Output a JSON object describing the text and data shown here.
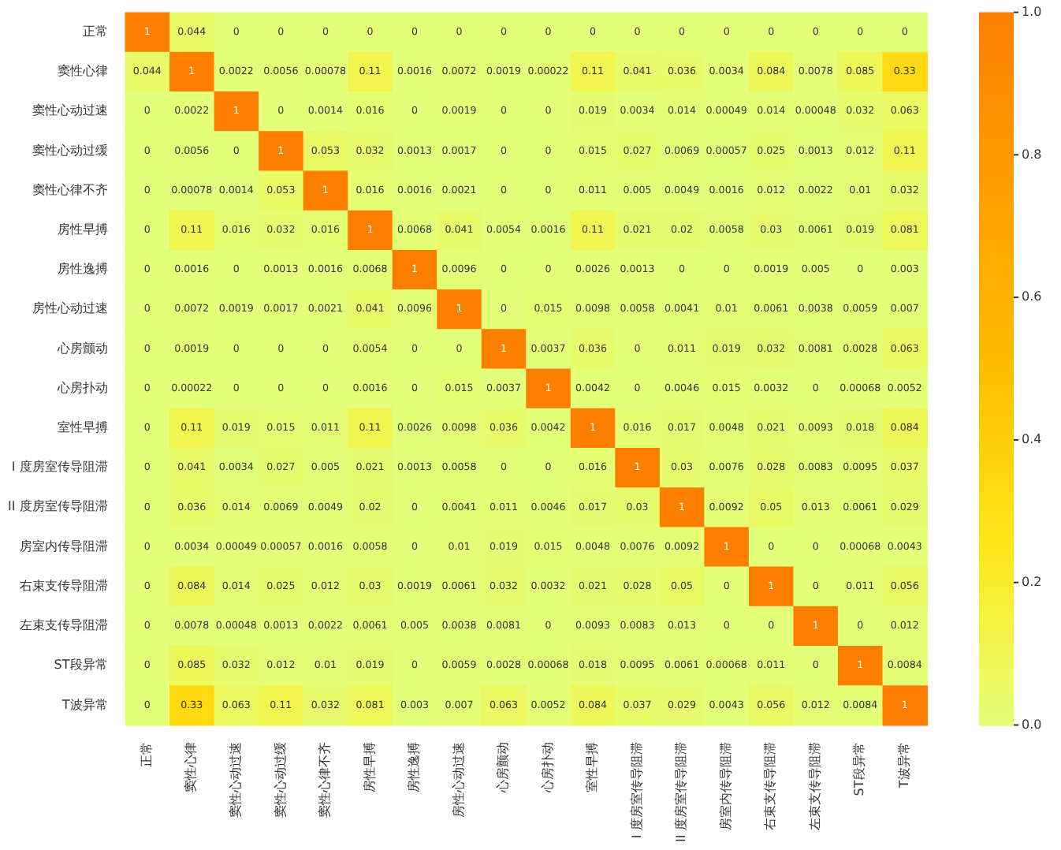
{
  "chart_data": {
    "type": "heatmap",
    "categories": [
      "正常",
      "窦性心律",
      "窦性心动过速",
      "窦性心动过缓",
      "窦性心律不齐",
      "房性早搏",
      "房性逸搏",
      "房性心动过速",
      "心房颤动",
      "心房扑动",
      "室性早搏",
      "I 度房室传导阻滞",
      "II 度房室传导阻滞",
      "房室内传导阻滞",
      "右束支传导阻滞",
      "左束支传导阻滞",
      "ST段异常",
      "T波异常"
    ],
    "y_categories": [
      "正常",
      "窦性心律",
      "窦性心动过速",
      "窦性心动过缓",
      "窦性心律不齐",
      "房性早搏",
      "房性逸搏",
      "房性心动过速",
      "心房颤动",
      "心房扑动",
      "室性早搏",
      "I 度房室传导阻滞",
      "II 度房室传导阻滞",
      "房室内传导阻滞",
      "右束支传导阻滞",
      "左束支传导阻滞",
      "ST段异常",
      "T波异常"
    ],
    "cells": [
      [
        1,
        0.044,
        0,
        0,
        0,
        0,
        0,
        0,
        0,
        0,
        0,
        0,
        0,
        0,
        0,
        0,
        0,
        0
      ],
      [
        0.044,
        1,
        0.0022,
        0.0056,
        0.00078,
        0.11,
        0.0016,
        0.0072,
        0.0019,
        0.00022,
        0.11,
        0.041,
        0.036,
        0.0034,
        0.084,
        0.0078,
        0.085,
        0.33
      ],
      [
        0,
        0.0022,
        1,
        0,
        0.0014,
        0.016,
        0,
        0.0019,
        0,
        0,
        0.019,
        0.0034,
        0.014,
        0.00049,
        0.014,
        0.00048,
        0.032,
        0.063
      ],
      [
        0,
        0.0056,
        0,
        1,
        0.053,
        0.032,
        0.0013,
        0.0017,
        0,
        0,
        0.015,
        0.027,
        0.0069,
        0.00057,
        0.025,
        0.0013,
        0.012,
        0.11
      ],
      [
        0,
        0.00078,
        0.0014,
        0.053,
        1,
        0.016,
        0.0016,
        0.0021,
        0,
        0,
        0.011,
        0.005,
        0.0049,
        0.0016,
        0.012,
        0.0022,
        0.01,
        0.032
      ],
      [
        0,
        0.11,
        0.016,
        0.032,
        0.016,
        1,
        0.0068,
        0.041,
        0.0054,
        0.0016,
        0.11,
        0.021,
        0.02,
        0.0058,
        0.03,
        0.0061,
        0.019,
        0.081
      ],
      [
        0,
        0.0016,
        0,
        0.0013,
        0.0016,
        0.0068,
        1,
        0.0096,
        0,
        0,
        0.0026,
        0.0013,
        0,
        0,
        0.0019,
        0.005,
        0,
        0.003
      ],
      [
        0,
        0.0072,
        0.0019,
        0.0017,
        0.0021,
        0.041,
        0.0096,
        1,
        0,
        0.015,
        0.0098,
        0.0058,
        0.0041,
        0.01,
        0.0061,
        0.0038,
        0.0059,
        0.007
      ],
      [
        0,
        0.0019,
        0,
        0,
        0,
        0.0054,
        0,
        0,
        1,
        0.0037,
        0.036,
        0,
        0.011,
        0.019,
        0.032,
        0.0081,
        0.0028,
        0.063
      ],
      [
        0,
        0.00022,
        0,
        0,
        0,
        0.0016,
        0,
        0.015,
        0.0037,
        1,
        0.0042,
        0,
        0.0046,
        0.015,
        0.0032,
        0,
        0.00068,
        0.0052
      ],
      [
        0,
        0.11,
        0.019,
        0.015,
        0.011,
        0.11,
        0.0026,
        0.0098,
        0.036,
        0.0042,
        1,
        0.016,
        0.017,
        0.0048,
        0.021,
        0.0093,
        0.018,
        0.084
      ],
      [
        0,
        0.041,
        0.0034,
        0.027,
        0.005,
        0.021,
        0.0013,
        0.0058,
        0,
        0,
        0.016,
        1,
        0.03,
        0.0076,
        0.028,
        0.0083,
        0.0095,
        0.037
      ],
      [
        0,
        0.036,
        0.014,
        0.0069,
        0.0049,
        0.02,
        0,
        0.0041,
        0.011,
        0.0046,
        0.017,
        0.03,
        1,
        0.0092,
        0.05,
        0.013,
        0.0061,
        0.029
      ],
      [
        0,
        0.0034,
        0.00049,
        0.00057,
        0.0016,
        0.0058,
        0,
        0.01,
        0.019,
        0.015,
        0.0048,
        0.0076,
        0.0092,
        1,
        0,
        0,
        0.00068,
        0.0043
      ],
      [
        0,
        0.084,
        0.014,
        0.025,
        0.012,
        0.03,
        0.0019,
        0.0061,
        0.032,
        0.0032,
        0.021,
        0.028,
        0.05,
        0,
        1,
        0,
        0.011,
        0.056
      ],
      [
        0,
        0.0078,
        0.00048,
        0.0013,
        0.0022,
        0.0061,
        0.005,
        0.0038,
        0.0081,
        0,
        0.0093,
        0.0083,
        0.013,
        0,
        0,
        1,
        0,
        0.012
      ],
      [
        0,
        0.085,
        0.032,
        0.012,
        0.01,
        0.019,
        0,
        0.0059,
        0.0028,
        0.00068,
        0.018,
        0.0095,
        0.0061,
        0.00068,
        0.011,
        0,
        1,
        0.0084
      ],
      [
        0,
        0.33,
        0.063,
        0.11,
        0.032,
        0.081,
        0.003,
        0.007,
        0.063,
        0.0052,
        0.084,
        0.037,
        0.029,
        0.0043,
        0.056,
        0.012,
        0.0084,
        1
      ]
    ],
    "data_labels": true,
    "clim": [
      0,
      1
    ],
    "cticks": [
      {
        "value": 0,
        "label": "0.0"
      },
      {
        "value": 0.2,
        "label": "0.2"
      },
      {
        "value": 0.4,
        "label": "0.4"
      },
      {
        "value": 0.6,
        "label": "0.6"
      },
      {
        "value": 0.8,
        "label": "0.8"
      },
      {
        "value": 1,
        "label": "1.0"
      }
    ]
  }
}
